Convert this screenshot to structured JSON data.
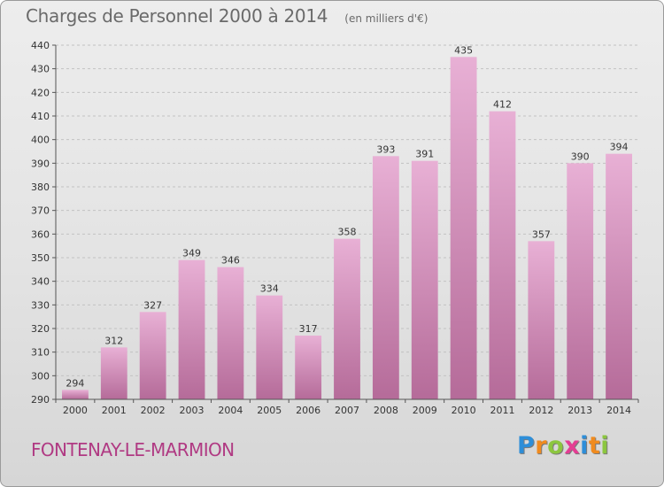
{
  "header": {
    "title": "Charges de Personnel 2000 à 2014",
    "unit": "(en milliers d'€)"
  },
  "footer": {
    "commune": "FONTENAY-LE-MARMION",
    "brand": "Proxiti",
    "brand_letters": [
      {
        "char": "P",
        "color": "#2e8ed8"
      },
      {
        "char": "r",
        "color": "#f08b1f"
      },
      {
        "char": "o",
        "color": "#8cc63f"
      },
      {
        "char": "x",
        "color": "#e43d93"
      },
      {
        "char": "i",
        "color": "#2e8ed8"
      },
      {
        "char": "t",
        "color": "#f08b1f"
      },
      {
        "char": "i",
        "color": "#8cc63f"
      }
    ]
  },
  "colors": {
    "bar_light": "#e8b0d5",
    "bar_dark": "#b56b99",
    "grid": "#c2c2c2",
    "axis_text": "#333333",
    "title_text": "#6a6a6a",
    "commune_text": "#b03a83"
  },
  "chart_data": {
    "type": "bar",
    "categories": [
      "2000",
      "2001",
      "2002",
      "2003",
      "2004",
      "2005",
      "2006",
      "2007",
      "2008",
      "2009",
      "2010",
      "2011",
      "2012",
      "2013",
      "2014"
    ],
    "values": [
      294,
      312,
      327,
      349,
      346,
      334,
      317,
      358,
      393,
      391,
      435,
      412,
      357,
      390,
      394
    ],
    "title": "Charges de Personnel 2000 à 2014",
    "subtitle": "(en milliers d'€)",
    "xlabel": "",
    "ylabel": "",
    "ylim": [
      290,
      440
    ],
    "yticks": [
      290,
      300,
      310,
      320,
      330,
      340,
      350,
      360,
      370,
      380,
      390,
      400,
      410,
      420,
      430,
      440
    ],
    "grid": true,
    "data_labels": true
  }
}
